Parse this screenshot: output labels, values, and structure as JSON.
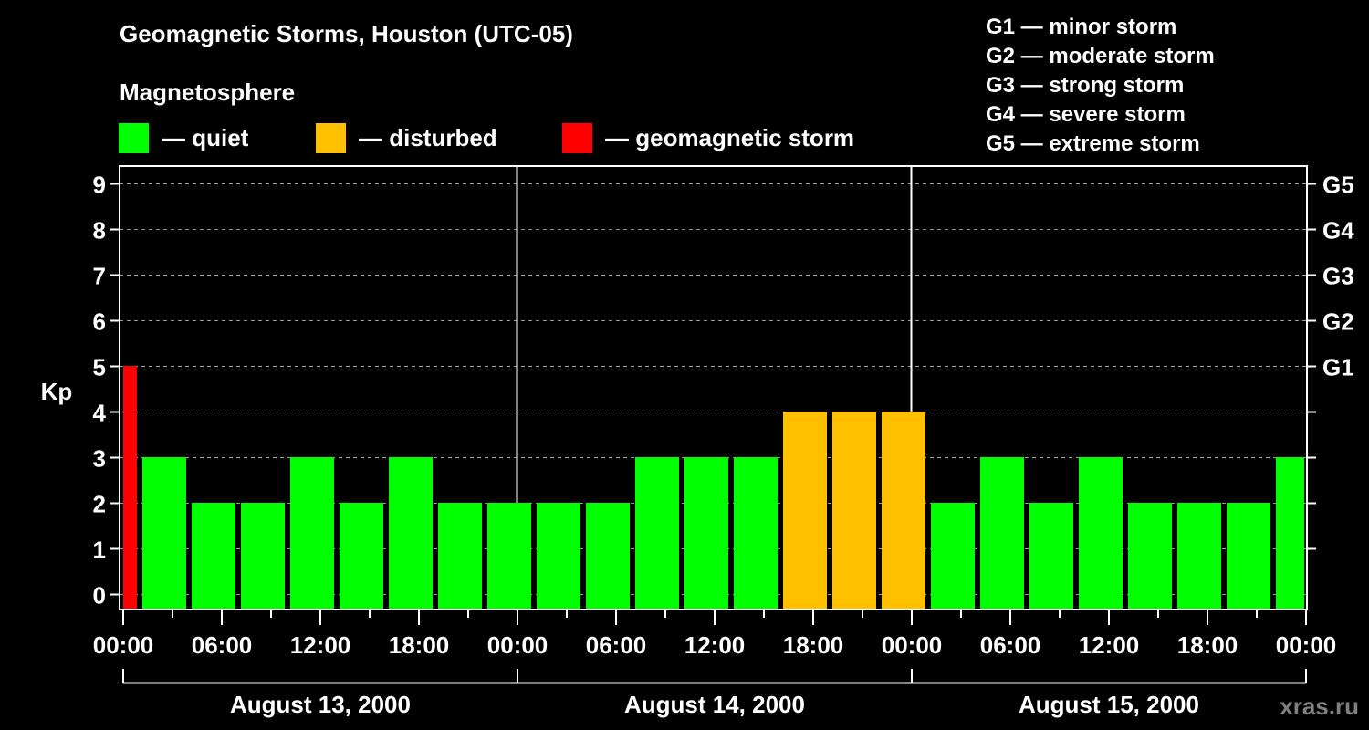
{
  "title": "Geomagnetic Storms, Houston (UTC-05)",
  "subtitle": "Magnetosphere",
  "legend": [
    {
      "label": "— quiet",
      "color": "#00ff00",
      "x": 130
    },
    {
      "label": "— disturbed",
      "color": "#ffc000",
      "x": 346
    },
    {
      "label": "— geomagnetic storm",
      "color": "#ff0000",
      "x": 616
    }
  ],
  "g_scale": [
    "G1 — minor storm",
    "G2 — moderate storm",
    "G3 — strong storm",
    "G4 — severe storm",
    "G5 — extreme storm"
  ],
  "watermark": "xras.ru",
  "colors": {
    "quiet": "#00ff00",
    "disturbed": "#ffc000",
    "storm": "#ff0000",
    "grid": "#9a9a9a",
    "axis": "#ffffff",
    "watermark": "#808080"
  },
  "chart_data": {
    "type": "bar",
    "title": "Geomagnetic Storms, Houston (UTC-05)",
    "ylabel": "Kp",
    "ylim": [
      0,
      9
    ],
    "yticks": [
      0,
      1,
      2,
      3,
      4,
      5,
      6,
      7,
      8,
      9
    ],
    "right_axis_labels": [
      {
        "kp": 5,
        "label": "G1"
      },
      {
        "kp": 6,
        "label": "G2"
      },
      {
        "kp": 7,
        "label": "G3"
      },
      {
        "kp": 8,
        "label": "G4"
      },
      {
        "kp": 9,
        "label": "G5"
      }
    ],
    "grid": true,
    "xtick_labels": [
      "00:00",
      "06:00",
      "12:00",
      "18:00",
      "00:00",
      "06:00",
      "12:00",
      "18:00",
      "00:00",
      "06:00",
      "12:00",
      "18:00",
      "00:00"
    ],
    "days": [
      "August 13, 2000",
      "August 14, 2000",
      "August 15, 2000"
    ],
    "interval_hours": 3,
    "first_bar_start_hour": -2,
    "categories": [
      "22:00",
      "01:00",
      "04:00",
      "07:00",
      "10:00",
      "13:00",
      "16:00",
      "19:00",
      "22:00",
      "01:00",
      "04:00",
      "07:00",
      "10:00",
      "13:00",
      "16:00",
      "19:00",
      "22:00",
      "01:00",
      "04:00",
      "07:00",
      "10:00",
      "13:00",
      "16:00",
      "19:00",
      "22:00"
    ],
    "values": [
      5,
      3,
      2,
      2,
      3,
      2,
      3,
      2,
      2,
      2,
      2,
      3,
      3,
      3,
      4,
      4,
      4,
      2,
      3,
      2,
      3,
      2,
      2,
      2,
      3
    ],
    "status": [
      "storm",
      "quiet",
      "quiet",
      "quiet",
      "quiet",
      "quiet",
      "quiet",
      "quiet",
      "quiet",
      "quiet",
      "quiet",
      "quiet",
      "quiet",
      "quiet",
      "disturbed",
      "disturbed",
      "disturbed",
      "quiet",
      "quiet",
      "quiet",
      "quiet",
      "quiet",
      "quiet",
      "quiet",
      "quiet"
    ]
  }
}
